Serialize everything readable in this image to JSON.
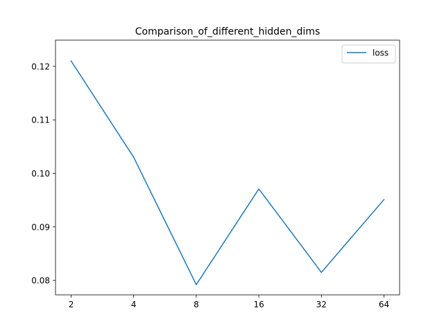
{
  "chart_data": {
    "type": "line",
    "title": "Comparison_of_different_hidden_dims",
    "xlabel": "",
    "ylabel": "",
    "categories": [
      "2",
      "4",
      "8",
      "16",
      "32",
      "64"
    ],
    "series": [
      {
        "name": "loss",
        "values": [
          0.121,
          0.103,
          0.0792,
          0.0971,
          0.0815,
          0.0951
        ],
        "color": "#1f77b4"
      }
    ],
    "ylim": [
      0.0773,
      0.1249
    ],
    "yticks": [
      0.08,
      0.09,
      0.1,
      0.11,
      0.12
    ],
    "ytick_labels": [
      "0.08",
      "0.09",
      "0.10",
      "0.11",
      "0.12"
    ],
    "grid": false,
    "legend": {
      "position": "upper-right",
      "entries": [
        "loss"
      ]
    }
  }
}
